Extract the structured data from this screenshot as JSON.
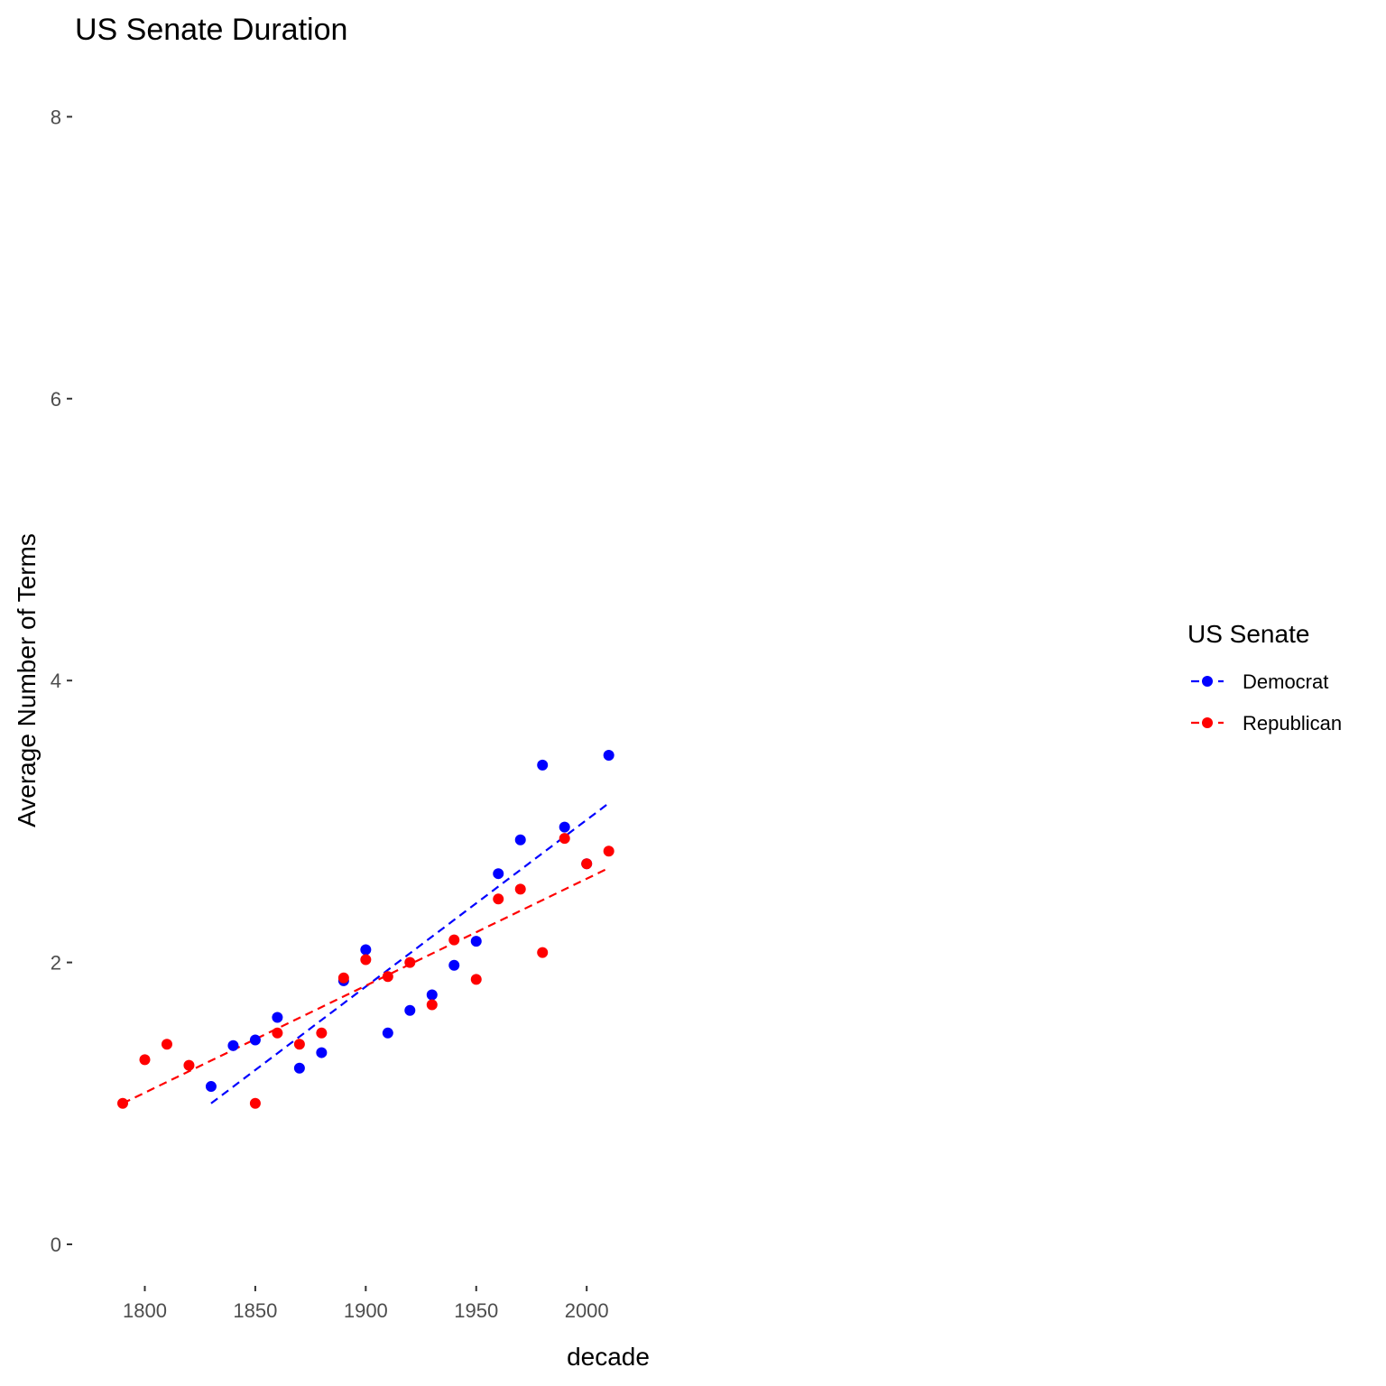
{
  "chart_data": {
    "type": "scatter",
    "title": "US Senate Duration",
    "xlabel": "decade",
    "ylabel": "Average Number of Terms",
    "xlim": [
      1785,
      2040
    ],
    "ylim": [
      -0.4,
      8.3
    ],
    "x_ticks": [
      1800,
      1850,
      1900,
      1950,
      2000
    ],
    "y_ticks": [
      0,
      2,
      4,
      6,
      8
    ],
    "grid": false,
    "legend": {
      "title": "US Senate",
      "placement": "right"
    },
    "series": [
      {
        "name": "Democrat",
        "color": "#0000ff",
        "points": [
          [
            1830,
            1.12
          ],
          [
            1840,
            1.41
          ],
          [
            1850,
            1.45
          ],
          [
            1860,
            1.61
          ],
          [
            1870,
            1.25
          ],
          [
            1880,
            1.36
          ],
          [
            1890,
            1.87
          ],
          [
            1900,
            2.09
          ],
          [
            1910,
            1.5
          ],
          [
            1920,
            1.66
          ],
          [
            1930,
            1.77
          ],
          [
            1940,
            1.98
          ],
          [
            1950,
            2.15
          ],
          [
            1960,
            2.63
          ],
          [
            1970,
            2.87
          ],
          [
            1980,
            3.4
          ],
          [
            1990,
            2.96
          ],
          [
            2000,
            2.7
          ],
          [
            2010,
            3.47
          ]
        ],
        "trend": [
          [
            1830,
            1.0
          ],
          [
            2010,
            3.13
          ]
        ]
      },
      {
        "name": "Republican",
        "color": "#ff0000",
        "points": [
          [
            1790,
            1.0
          ],
          [
            1800,
            1.31
          ],
          [
            1810,
            1.42
          ],
          [
            1820,
            1.27
          ],
          [
            1850,
            1.0
          ],
          [
            1860,
            1.5
          ],
          [
            1870,
            1.42
          ],
          [
            1880,
            1.5
          ],
          [
            1890,
            1.89
          ],
          [
            1900,
            2.02
          ],
          [
            1910,
            1.9
          ],
          [
            1920,
            2.0
          ],
          [
            1930,
            1.7
          ],
          [
            1940,
            2.16
          ],
          [
            1950,
            1.88
          ],
          [
            1960,
            2.45
          ],
          [
            1970,
            2.52
          ],
          [
            1980,
            2.07
          ],
          [
            1990,
            2.88
          ],
          [
            2000,
            2.7
          ],
          [
            2010,
            2.79
          ]
        ],
        "trend": [
          [
            1790,
            1.0
          ],
          [
            2010,
            2.67
          ]
        ]
      }
    ]
  }
}
